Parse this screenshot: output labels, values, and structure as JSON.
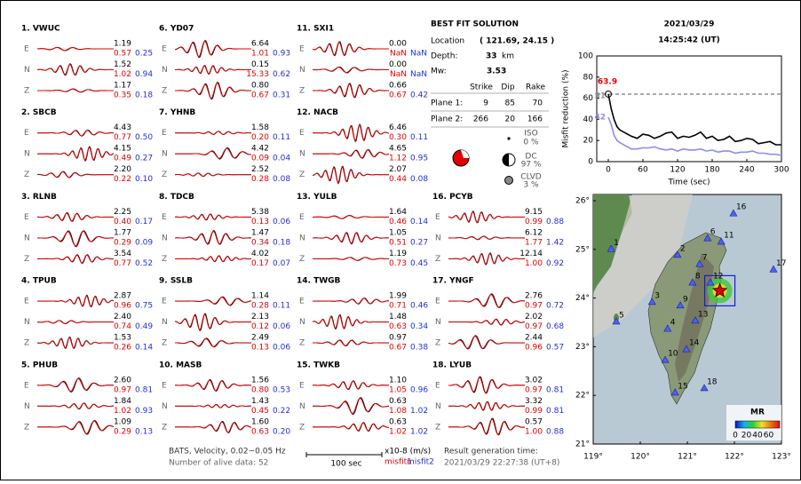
{
  "stations": [
    {
      "name": "1.  VWUC",
      "components": [
        {
          "label": "E",
          "amplitude": "1.19",
          "misfit1": "0.57",
          "misfit2": "0.25"
        },
        {
          "label": "N",
          "amplitude": "1.52",
          "misfit1": "1.02",
          "misfit2": "0.94"
        },
        {
          "label": "Z",
          "amplitude": "1.17",
          "misfit1": "0.35",
          "misfit2": "0.18"
        }
      ]
    },
    {
      "name": "2.  SBCB",
      "components": [
        {
          "label": "E",
          "amplitude": "4.43",
          "misfit1": "0.77",
          "misfit2": "0.50"
        },
        {
          "label": "N",
          "amplitude": "4.15",
          "misfit1": "0.49",
          "misfit2": "0.27"
        },
        {
          "label": "Z",
          "amplitude": "2.20",
          "misfit1": "0.22",
          "misfit2": "0.10"
        }
      ]
    },
    {
      "name": "3.  RLNB",
      "components": [
        {
          "label": "E",
          "amplitude": "2.25",
          "misfit1": "0.40",
          "misfit2": "0.17"
        },
        {
          "label": "N",
          "amplitude": "1.77",
          "misfit1": "0.29",
          "misfit2": "0.09"
        },
        {
          "label": "Z",
          "amplitude": "3.54",
          "misfit1": "0.77",
          "misfit2": "0.52"
        }
      ]
    },
    {
      "name": "4.  TPUB",
      "components": [
        {
          "label": "E",
          "amplitude": "2.87",
          "misfit1": "0.96",
          "misfit2": "0.75"
        },
        {
          "label": "N",
          "amplitude": "2.40",
          "misfit1": "0.74",
          "misfit2": "0.49"
        },
        {
          "label": "Z",
          "amplitude": "1.53",
          "misfit1": "0.26",
          "misfit2": "0.14"
        }
      ]
    },
    {
      "name": "5.  PHUB",
      "components": [
        {
          "label": "E",
          "amplitude": "2.60",
          "misfit1": "0.97",
          "misfit2": "0.81"
        },
        {
          "label": "N",
          "amplitude": "1.84",
          "misfit1": "1.02",
          "misfit2": "0.93"
        },
        {
          "label": "Z",
          "amplitude": "1.09",
          "misfit1": "0.29",
          "misfit2": "0.13"
        }
      ]
    },
    {
      "name": "6.  YD07",
      "components": [
        {
          "label": "E",
          "amplitude": "6.64",
          "misfit1": "1.01",
          "misfit2": "0.93"
        },
        {
          "label": "N",
          "amplitude": "0.15",
          "misfit1": "15.33",
          "misfit2": "0.62"
        },
        {
          "label": "Z",
          "amplitude": "0.80",
          "misfit1": "0.67",
          "misfit2": "0.31"
        }
      ]
    },
    {
      "name": "7.  YHNB",
      "components": [
        {
          "label": "E",
          "amplitude": "1.58",
          "misfit1": "0.20",
          "misfit2": "0.11"
        },
        {
          "label": "N",
          "amplitude": "4.42",
          "misfit1": "0.09",
          "misfit2": "0.04"
        },
        {
          "label": "Z",
          "amplitude": "2.52",
          "misfit1": "0.28",
          "misfit2": "0.08"
        }
      ]
    },
    {
      "name": "8.  TDCB",
      "components": [
        {
          "label": "E",
          "amplitude": "5.38",
          "misfit1": "0.13",
          "misfit2": "0.06"
        },
        {
          "label": "N",
          "amplitude": "1.47",
          "misfit1": "0.34",
          "misfit2": "0.18"
        },
        {
          "label": "Z",
          "amplitude": "4.02",
          "misfit1": "0.17",
          "misfit2": "0.07"
        }
      ]
    },
    {
      "name": "9.  SSLB",
      "components": [
        {
          "label": "E",
          "amplitude": "1.14",
          "misfit1": "0.28",
          "misfit2": "0.11"
        },
        {
          "label": "N",
          "amplitude": "2.13",
          "misfit1": "0.12",
          "misfit2": "0.06"
        },
        {
          "label": "Z",
          "amplitude": "2.49",
          "misfit1": "0.13",
          "misfit2": "0.06"
        }
      ]
    },
    {
      "name": "10.  MASB",
      "components": [
        {
          "label": "E",
          "amplitude": "1.56",
          "misfit1": "0.80",
          "misfit2": "0.53"
        },
        {
          "label": "N",
          "amplitude": "1.43",
          "misfit1": "0.45",
          "misfit2": "0.22"
        },
        {
          "label": "Z",
          "amplitude": "1.60",
          "misfit1": "0.63",
          "misfit2": "0.20"
        }
      ]
    },
    {
      "name": "11.  SXI1",
      "components": [
        {
          "label": "E",
          "amplitude": "0.00",
          "misfit1": "NaN",
          "misfit2": "NaN"
        },
        {
          "label": "N",
          "amplitude": "0.00",
          "misfit1": "NaN",
          "misfit2": "NaN"
        },
        {
          "label": "Z",
          "amplitude": "0.66",
          "misfit1": "0.67",
          "misfit2": "0.42"
        }
      ]
    },
    {
      "name": "12.  NACB",
      "components": [
        {
          "label": "E",
          "amplitude": "6.46",
          "misfit1": "0.30",
          "misfit2": "0.11"
        },
        {
          "label": "N",
          "amplitude": "4.65",
          "misfit1": "1.12",
          "misfit2": "0.95"
        },
        {
          "label": "Z",
          "amplitude": "2.07",
          "misfit1": "0.44",
          "misfit2": "0.08"
        }
      ]
    },
    {
      "name": "13.  YULB",
      "components": [
        {
          "label": "E",
          "amplitude": "1.64",
          "misfit1": "0.46",
          "misfit2": "0.14"
        },
        {
          "label": "N",
          "amplitude": "1.05",
          "misfit1": "0.51",
          "misfit2": "0.27"
        },
        {
          "label": "Z",
          "amplitude": "1.19",
          "misfit1": "0.73",
          "misfit2": "0.45"
        }
      ]
    },
    {
      "name": "14.  TWGB",
      "components": [
        {
          "label": "E",
          "amplitude": "1.99",
          "misfit1": "0.71",
          "misfit2": "0.46"
        },
        {
          "label": "N",
          "amplitude": "1.48",
          "misfit1": "0.63",
          "misfit2": "0.34"
        },
        {
          "label": "Z",
          "amplitude": "0.97",
          "misfit1": "0.67",
          "misfit2": "0.38"
        }
      ]
    },
    {
      "name": "15.  TWKB",
      "components": [
        {
          "label": "E",
          "amplitude": "1.10",
          "misfit1": "1.05",
          "misfit2": "0.96"
        },
        {
          "label": "N",
          "amplitude": "0.63",
          "misfit1": "1.08",
          "misfit2": "1.02"
        },
        {
          "label": "Z",
          "amplitude": "0.63",
          "misfit1": "1.02",
          "misfit2": "1.02"
        }
      ]
    },
    {
      "name": "16.  PCYB",
      "components": [
        {
          "label": "E",
          "amplitude": "9.15",
          "misfit1": "0.99",
          "misfit2": "0.88"
        },
        {
          "label": "N",
          "amplitude": "6.12",
          "misfit1": "1.77",
          "misfit2": "1.42"
        },
        {
          "label": "Z",
          "amplitude": "12.14",
          "misfit1": "1.00",
          "misfit2": "0.92"
        }
      ]
    },
    {
      "name": "17.  YNGF",
      "components": [
        {
          "label": "E",
          "amplitude": "2.76",
          "misfit1": "0.97",
          "misfit2": "0.72"
        },
        {
          "label": "N",
          "amplitude": "2.02",
          "misfit1": "0.97",
          "misfit2": "0.68"
        },
        {
          "label": "Z",
          "amplitude": "2.44",
          "misfit1": "0.96",
          "misfit2": "0.57"
        }
      ]
    },
    {
      "name": "18.  LYUB",
      "components": [
        {
          "label": "E",
          "amplitude": "3.02",
          "misfit1": "0.97",
          "misfit2": "0.81"
        },
        {
          "label": "N",
          "amplitude": "3.32",
          "misfit1": "0.99",
          "misfit2": "0.81"
        },
        {
          "label": "Z",
          "amplitude": "0.57",
          "misfit1": "1.00",
          "misfit2": "0.88"
        }
      ]
    }
  ],
  "solution": {
    "title": "BEST FIT SOLUTION",
    "location_label": "Location",
    "location": {
      "label": "( 121.69, 24.15 )",
      "lon": 121.69,
      "lat": 24.15
    },
    "depth_label": "Depth:",
    "depth": "33",
    "depth_unit": "km",
    "mw_label": "Mw:",
    "mw": "3.53",
    "headers": [
      "Strike",
      "Dip",
      "Rake"
    ],
    "planes": [
      {
        "name": "Plane 1:",
        "values": [
          "9",
          "85",
          "70"
        ]
      },
      {
        "name": "Plane 2:",
        "values": [
          "266",
          "20",
          "166"
        ]
      }
    ],
    "components": [
      {
        "name": "ISO",
        "value": "0 %"
      },
      {
        "name": "DC",
        "value": "97 %"
      },
      {
        "name": "CLVD",
        "value": "3 %"
      }
    ]
  },
  "datetime": {
    "date": "2021/03/29",
    "time": "14:25:42  (UT)"
  },
  "chart_data": {
    "type": "line",
    "ylabel": "Misfit reduction (%)",
    "xlabel": "Time (sec)",
    "xlim": [
      -20,
      300
    ],
    "ylim": [
      0,
      100
    ],
    "xticks": [
      0,
      60,
      120,
      180,
      240,
      300
    ],
    "yticks": [
      0,
      20,
      40,
      60,
      80,
      100
    ],
    "x": [
      0,
      5,
      10,
      15,
      20,
      30,
      40,
      50,
      60,
      70,
      80,
      90,
      100,
      110,
      120,
      130,
      140,
      150,
      160,
      170,
      180,
      190,
      200,
      210,
      220,
      230,
      240,
      250,
      260,
      270,
      280,
      290,
      300
    ],
    "series": [
      {
        "color": "#000000",
        "values": [
          64,
          50,
          40,
          33,
          30,
          27,
          24,
          22,
          26,
          25,
          22,
          24,
          27,
          28,
          22,
          24,
          23,
          25,
          28,
          22,
          24,
          20,
          21,
          24,
          19,
          20,
          22,
          21,
          17,
          18,
          19,
          16,
          16
        ]
      },
      {
        "color": "#8c8cf0",
        "values": [
          42,
          35,
          25,
          20,
          18,
          15,
          12,
          12,
          13,
          13,
          14,
          12,
          11,
          12,
          10,
          12,
          11,
          11,
          12,
          10,
          11,
          9,
          10,
          10,
          8,
          9,
          9,
          10,
          8,
          8,
          7,
          7,
          6
        ]
      }
    ],
    "peak": 63.9,
    "peak_color": "#e00000",
    "annotations": [
      {
        "value": 51,
        "color": "#999999"
      },
      {
        "value": 42,
        "color": "#8c8cf0"
      }
    ]
  },
  "map": {
    "xlim": [
      119,
      123
    ],
    "ylim": [
      21,
      26
    ],
    "xticks": [
      {
        "value": 119,
        "label": "119°"
      },
      {
        "value": 120,
        "label": "120°"
      },
      {
        "value": 121,
        "label": "121°"
      },
      {
        "value": 122,
        "label": "122°"
      },
      {
        "value": 123,
        "label": "123°"
      }
    ],
    "yticks": [
      {
        "value": 21,
        "label": "21°"
      },
      {
        "value": 22,
        "label": "22°"
      },
      {
        "value": 23,
        "label": "23°"
      },
      {
        "value": 24,
        "label": "24°"
      },
      {
        "value": 25,
        "label": "25°"
      },
      {
        "value": 26,
        "label": "26°"
      }
    ],
    "stations": [
      {
        "label": "1",
        "lon": 119.38,
        "lat": 25.01
      },
      {
        "label": "2",
        "lon": 120.79,
        "lat": 24.89
      },
      {
        "label": "3",
        "lon": 120.25,
        "lat": 23.92
      },
      {
        "label": "4",
        "lon": 120.58,
        "lat": 23.37
      },
      {
        "label": "5",
        "lon": 119.49,
        "lat": 23.52
      },
      {
        "label": "6",
        "lon": 121.43,
        "lat": 25.23
      },
      {
        "label": "7",
        "lon": 121.26,
        "lat": 24.7
      },
      {
        "label": "8",
        "lon": 121.11,
        "lat": 24.32
      },
      {
        "label": "9",
        "lon": 120.85,
        "lat": 23.85
      },
      {
        "label": "10",
        "lon": 120.53,
        "lat": 22.73
      },
      {
        "label": "11",
        "lon": 121.72,
        "lat": 25.16
      },
      {
        "label": "12",
        "lon": 121.49,
        "lat": 24.32
      },
      {
        "label": "13",
        "lon": 121.17,
        "lat": 23.54
      },
      {
        "label": "14",
        "lon": 120.98,
        "lat": 22.95
      },
      {
        "label": "15",
        "lon": 120.74,
        "lat": 22.06
      },
      {
        "label": "16",
        "lon": 121.98,
        "lat": 25.74
      },
      {
        "label": "17",
        "lon": 122.83,
        "lat": 24.59
      },
      {
        "label": "18",
        "lon": 121.36,
        "lat": 22.15
      }
    ],
    "colorbar": {
      "title": "MR",
      "lim": [
        0,
        80
      ],
      "ticks": [
        0,
        20,
        40,
        60
      ]
    }
  },
  "footer": {
    "source": "BATS, Velocity, 0.02~0.05 Hz",
    "alive": "Number of alive data: 52",
    "scale": "100 sec",
    "unit": "x10-8 (m/s)",
    "misfit1": "misfit1",
    "misfit2": "misfit2",
    "result_label": "Result generation time:",
    "result_time": "2021/03/29 22:27:38 (UT+8)"
  }
}
